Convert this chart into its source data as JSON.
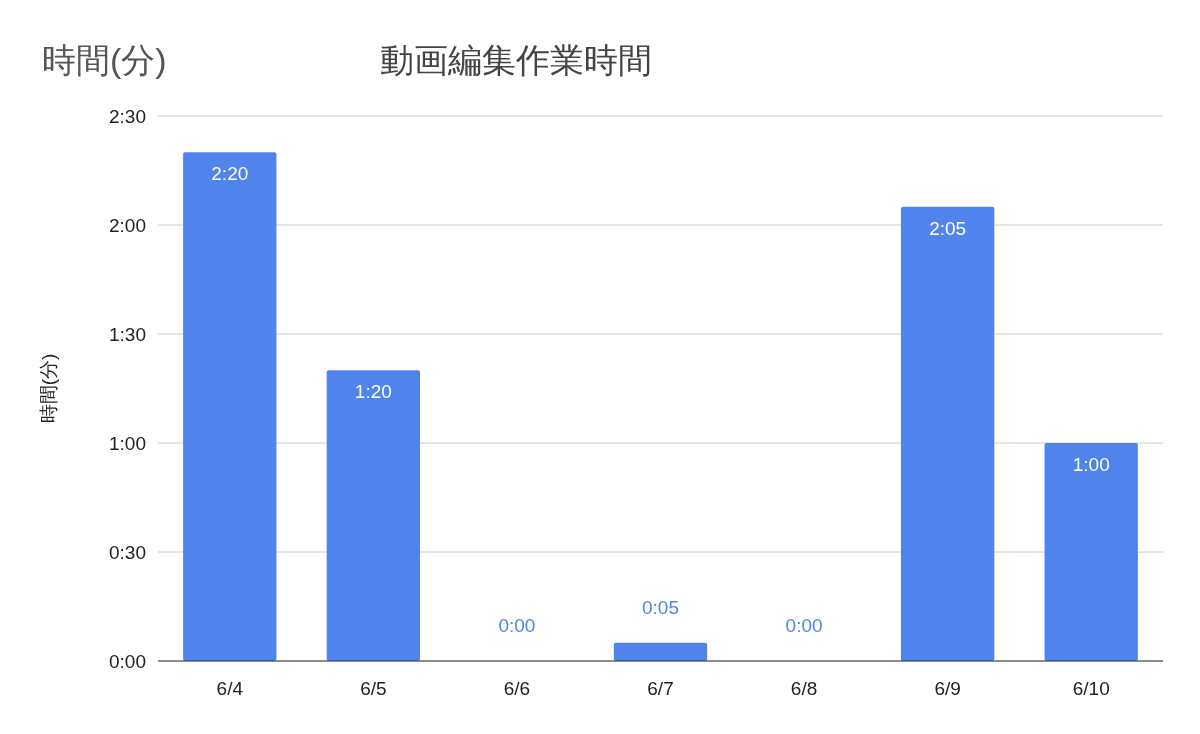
{
  "chart_data": {
    "type": "bar",
    "title": "動画編集作業時間",
    "ylabel": "時間(分)",
    "annotations": [
      "時間(分)"
    ],
    "categories": [
      "6/4",
      "6/5",
      "6/6",
      "6/7",
      "6/8",
      "6/9",
      "6/10"
    ],
    "values": [
      140,
      80,
      0,
      5,
      0,
      125,
      60
    ],
    "value_labels": [
      "2:20",
      "1:20",
      "0:00",
      "0:05",
      "0:00",
      "2:05",
      "1:00"
    ],
    "color": "#5083ec",
    "ylim": [
      0,
      150
    ],
    "yticks": [
      {
        "value": 0,
        "label": "0:00"
      },
      {
        "value": 30,
        "label": "0:30"
      },
      {
        "value": 60,
        "label": "1:00"
      },
      {
        "value": 90,
        "label": "1:30"
      },
      {
        "value": 120,
        "label": "2:00"
      },
      {
        "value": 150,
        "label": "2:30"
      }
    ],
    "grid": "y"
  }
}
